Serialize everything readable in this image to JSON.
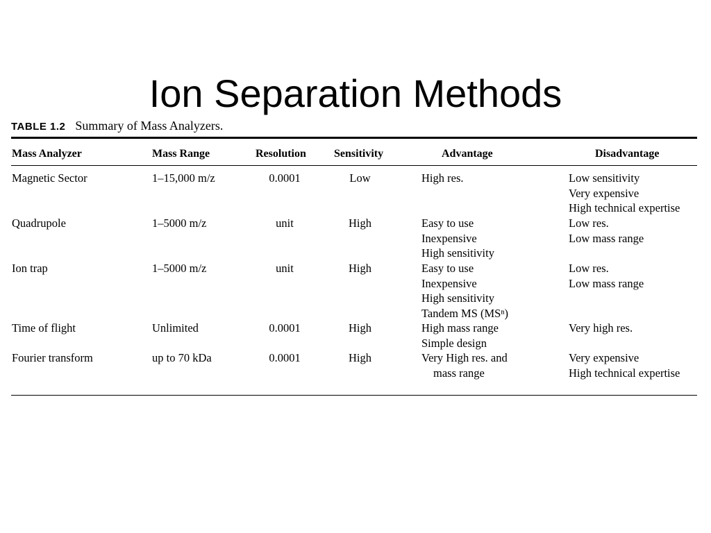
{
  "slide": {
    "title": "Ion Separation Methods"
  },
  "table": {
    "caption_label": "TABLE 1.2",
    "caption_text": "Summary of Mass Analyzers.",
    "headers": [
      "Mass Analyzer",
      "Mass Range",
      "Resolution",
      "Sensitivity",
      "Advantage",
      "Disadvantage"
    ],
    "rows": [
      {
        "analyzer": "Magnetic Sector",
        "range": "1–15,000 m/z",
        "resolution": "0.0001",
        "sensitivity": "Low",
        "advantages": [
          "High res."
        ],
        "disadvantages": [
          "Low sensitivity",
          "Very expensive",
          "High technical expertise"
        ]
      },
      {
        "analyzer": "Quadrupole",
        "range": "1–5000 m/z",
        "resolution": "unit",
        "sensitivity": "High",
        "advantages": [
          "Easy to use",
          "Inexpensive",
          "High sensitivity"
        ],
        "disadvantages": [
          "Low res.",
          "Low mass range"
        ]
      },
      {
        "analyzer": "Ion trap",
        "range": "1–5000 m/z",
        "resolution": "unit",
        "sensitivity": "High",
        "advantages": [
          "Easy to use",
          "Inexpensive",
          "High sensitivity",
          "Tandem MS (MSⁿ)"
        ],
        "disadvantages": [
          "Low res.",
          "Low mass range"
        ]
      },
      {
        "analyzer": "Time of flight",
        "range": "Unlimited",
        "resolution": "0.0001",
        "sensitivity": "High",
        "advantages": [
          "High mass range",
          "Simple design"
        ],
        "disadvantages": [
          "Very high res."
        ]
      },
      {
        "analyzer": "Fourier transform",
        "range": "up to 70 kDa",
        "resolution": "0.0001",
        "sensitivity": "High",
        "advantages": [
          "Very High res. and",
          "mass range"
        ],
        "disadvantages": [
          "Very expensive",
          "High technical expertise"
        ]
      }
    ]
  }
}
